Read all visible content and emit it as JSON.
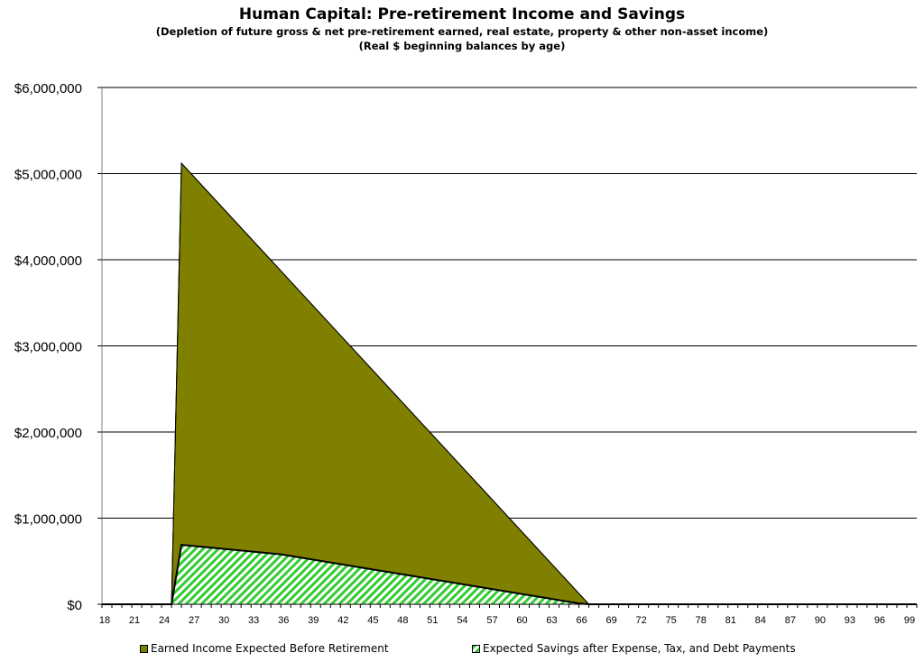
{
  "title": "Human Capital: Pre-retirement Income and Savings",
  "subtitle1": "(Depletion of future gross & net pre-retirement earned, real estate, property & other non-asset income)",
  "subtitle2": "(Real $ beginning  balances by age)",
  "chart_data": {
    "type": "area",
    "xlim": [
      18,
      100
    ],
    "ylim": [
      0,
      6000000
    ],
    "yticks": [
      0,
      1000000,
      2000000,
      3000000,
      4000000,
      5000000,
      6000000
    ],
    "ytick_labels": [
      "$0",
      "$1,000,000",
      "$2,000,000",
      "$3,000,000",
      "$4,000,000",
      "$5,000,000",
      "$6,000,000"
    ],
    "xticks": [
      18,
      21,
      24,
      27,
      30,
      33,
      36,
      39,
      42,
      45,
      48,
      51,
      54,
      57,
      60,
      63,
      66,
      69,
      72,
      75,
      78,
      81,
      84,
      87,
      90,
      93,
      96,
      99
    ],
    "grid": true,
    "legend_position": "bottom",
    "series": [
      {
        "name": "Earned Income Expected Before Retirement",
        "color": "#808000",
        "points": [
          [
            18,
            0
          ],
          [
            25,
            0
          ],
          [
            26,
            5120000
          ],
          [
            67,
            0
          ],
          [
            100,
            0
          ]
        ]
      },
      {
        "name": "Expected Savings after Expense, Tax, and Debt Payments",
        "color": "#33cc33",
        "points": [
          [
            18,
            0
          ],
          [
            25,
            0
          ],
          [
            26,
            690000
          ],
          [
            36,
            580000
          ],
          [
            66,
            10000
          ],
          [
            67,
            0
          ],
          [
            100,
            0
          ]
        ]
      }
    ]
  }
}
